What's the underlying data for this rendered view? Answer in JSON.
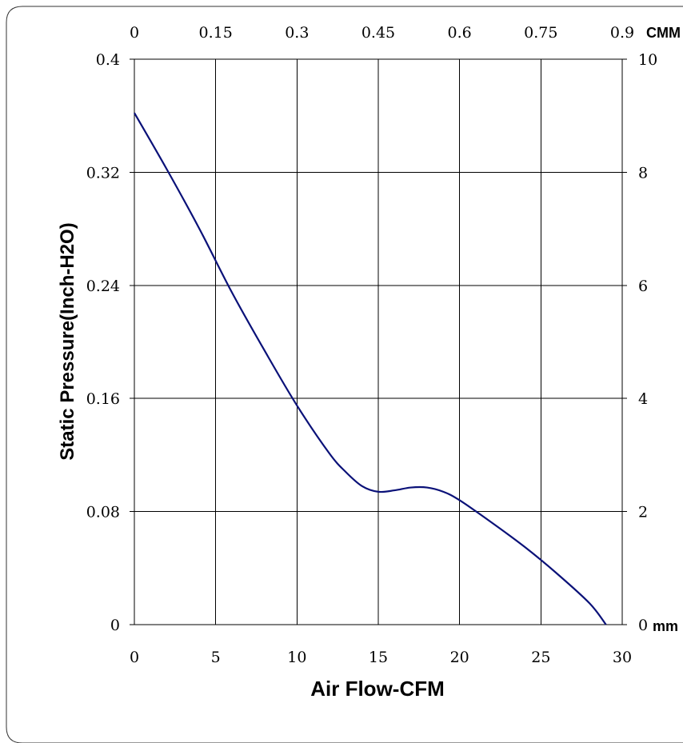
{
  "chart_data": {
    "type": "line",
    "xlabel": "Air Flow-CFM",
    "ylabel": "Static Pressure(Inch-H2O)",
    "xlim": [
      0,
      30
    ],
    "ylim": [
      0,
      0.4
    ],
    "x_ticks": [
      "0",
      "5",
      "10",
      "15",
      "20",
      "25",
      "30"
    ],
    "y_ticks": [
      "0",
      "0.08",
      "0.16",
      "0.24",
      "0.32",
      "0.4"
    ],
    "top_axis": {
      "unit_label": "CMM",
      "lim": [
        0,
        0.9
      ],
      "ticks": [
        "0",
        "0.15",
        "0.3",
        "0.45",
        "0.6",
        "0.75",
        "0.9"
      ]
    },
    "right_axis": {
      "unit_label": "mm",
      "lim": [
        0,
        10
      ],
      "ticks": [
        "0",
        "2",
        "4",
        "6",
        "8",
        "10"
      ]
    },
    "grid": true,
    "series": [
      {
        "color": "#0a1178",
        "x": [
          0,
          2,
          4,
          6,
          8,
          10,
          12,
          13,
          14,
          15,
          16,
          17,
          18,
          19,
          20,
          22,
          24,
          26,
          28,
          29
        ],
        "y": [
          0.362,
          0.322,
          0.28,
          0.235,
          0.194,
          0.155,
          0.121,
          0.108,
          0.098,
          0.094,
          0.095,
          0.097,
          0.097,
          0.094,
          0.088,
          0.072,
          0.055,
          0.036,
          0.015,
          0.0
        ]
      }
    ]
  }
}
